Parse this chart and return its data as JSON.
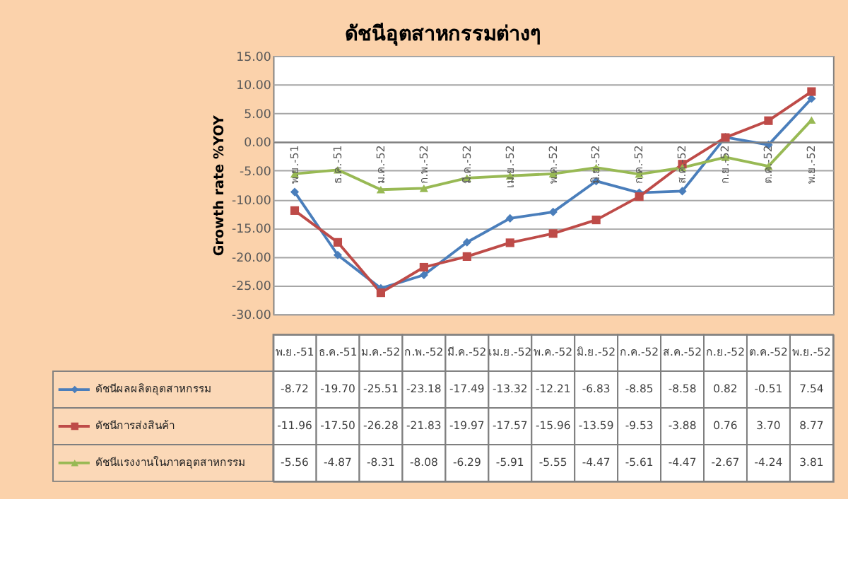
{
  "chart_data": {
    "type": "line",
    "title": "ดัชนีอุตสาหกรรมต่างๆ",
    "ylabel": "Growth rate %YOY",
    "categories": [
      "พ.ย.-51",
      "ธ.ค.-51",
      "ม.ค.-52",
      "ก.พ.-52",
      "มี.ค.-52",
      "เม.ย.-52",
      "พ.ค.-52",
      "มิ.ย.-52",
      "ก.ค.-52",
      "ส.ค.-52",
      "ก.ย.-52",
      "ต.ค.-52",
      "พ.ย.-52"
    ],
    "series": [
      {
        "name": "ดัชนีผลผลิตอุตสาหกรรม",
        "color": "#4a7ebb",
        "marker": "diamond",
        "values": [
          -8.72,
          -19.7,
          -25.51,
          -23.18,
          -17.49,
          -13.32,
          -12.21,
          -6.83,
          -8.85,
          -8.58,
          0.82,
          -0.51,
          7.54
        ],
        "value_labels": [
          "-8.72",
          "-19.70",
          "-25.51",
          "-23.18",
          "-17.49",
          "-13.32",
          "-12.21",
          "-6.83",
          "-8.85",
          "-8.58",
          "0.82",
          "-0.51",
          "7.54"
        ]
      },
      {
        "name": "ดัชนีการส่งสินค้า",
        "color": "#be4b48",
        "marker": "square",
        "values": [
          -11.96,
          -17.5,
          -26.28,
          -21.83,
          -19.97,
          -17.57,
          -15.96,
          -13.59,
          -9.53,
          -3.88,
          0.76,
          3.7,
          8.77
        ],
        "value_labels": [
          "-11.96",
          "-17.50",
          "-26.28",
          "-21.83",
          "-19.97",
          "-17.57",
          "-15.96",
          "-13.59",
          "-9.53",
          "-3.88",
          "0.76",
          "3.70",
          "8.77"
        ]
      },
      {
        "name": "ดัชนีแรงงานในภาคอุตสาหกรรม",
        "color": "#98b954",
        "marker": "triangle",
        "values": [
          -5.56,
          -4.87,
          -8.31,
          -8.08,
          -6.29,
          -5.91,
          -5.55,
          -4.47,
          -5.61,
          -4.47,
          -2.67,
          -4.24,
          3.81
        ],
        "value_labels": [
          "-5.56",
          "-4.87",
          "-8.31",
          "-8.08",
          "-6.29",
          "-5.91",
          "-5.55",
          "-4.47",
          "-5.61",
          "-4.47",
          "-2.67",
          "-4.24",
          "3.81"
        ]
      }
    ],
    "ylim": [
      -30,
      15
    ],
    "yticks": [
      {
        "value": -30,
        "label": "-30.00"
      },
      {
        "value": -25,
        "label": "-25.00"
      },
      {
        "value": -20,
        "label": "-20.00"
      },
      {
        "value": -15,
        "label": "-15.00"
      },
      {
        "value": -10,
        "label": "-10.00"
      },
      {
        "value": -5,
        "label": "-5.00"
      },
      {
        "value": 0,
        "label": "0.00"
      },
      {
        "value": 5,
        "label": "5.00"
      },
      {
        "value": 10,
        "label": "10.00"
      },
      {
        "value": 15,
        "label": "15.00"
      }
    ],
    "grid": "y",
    "legend": "bottom"
  }
}
